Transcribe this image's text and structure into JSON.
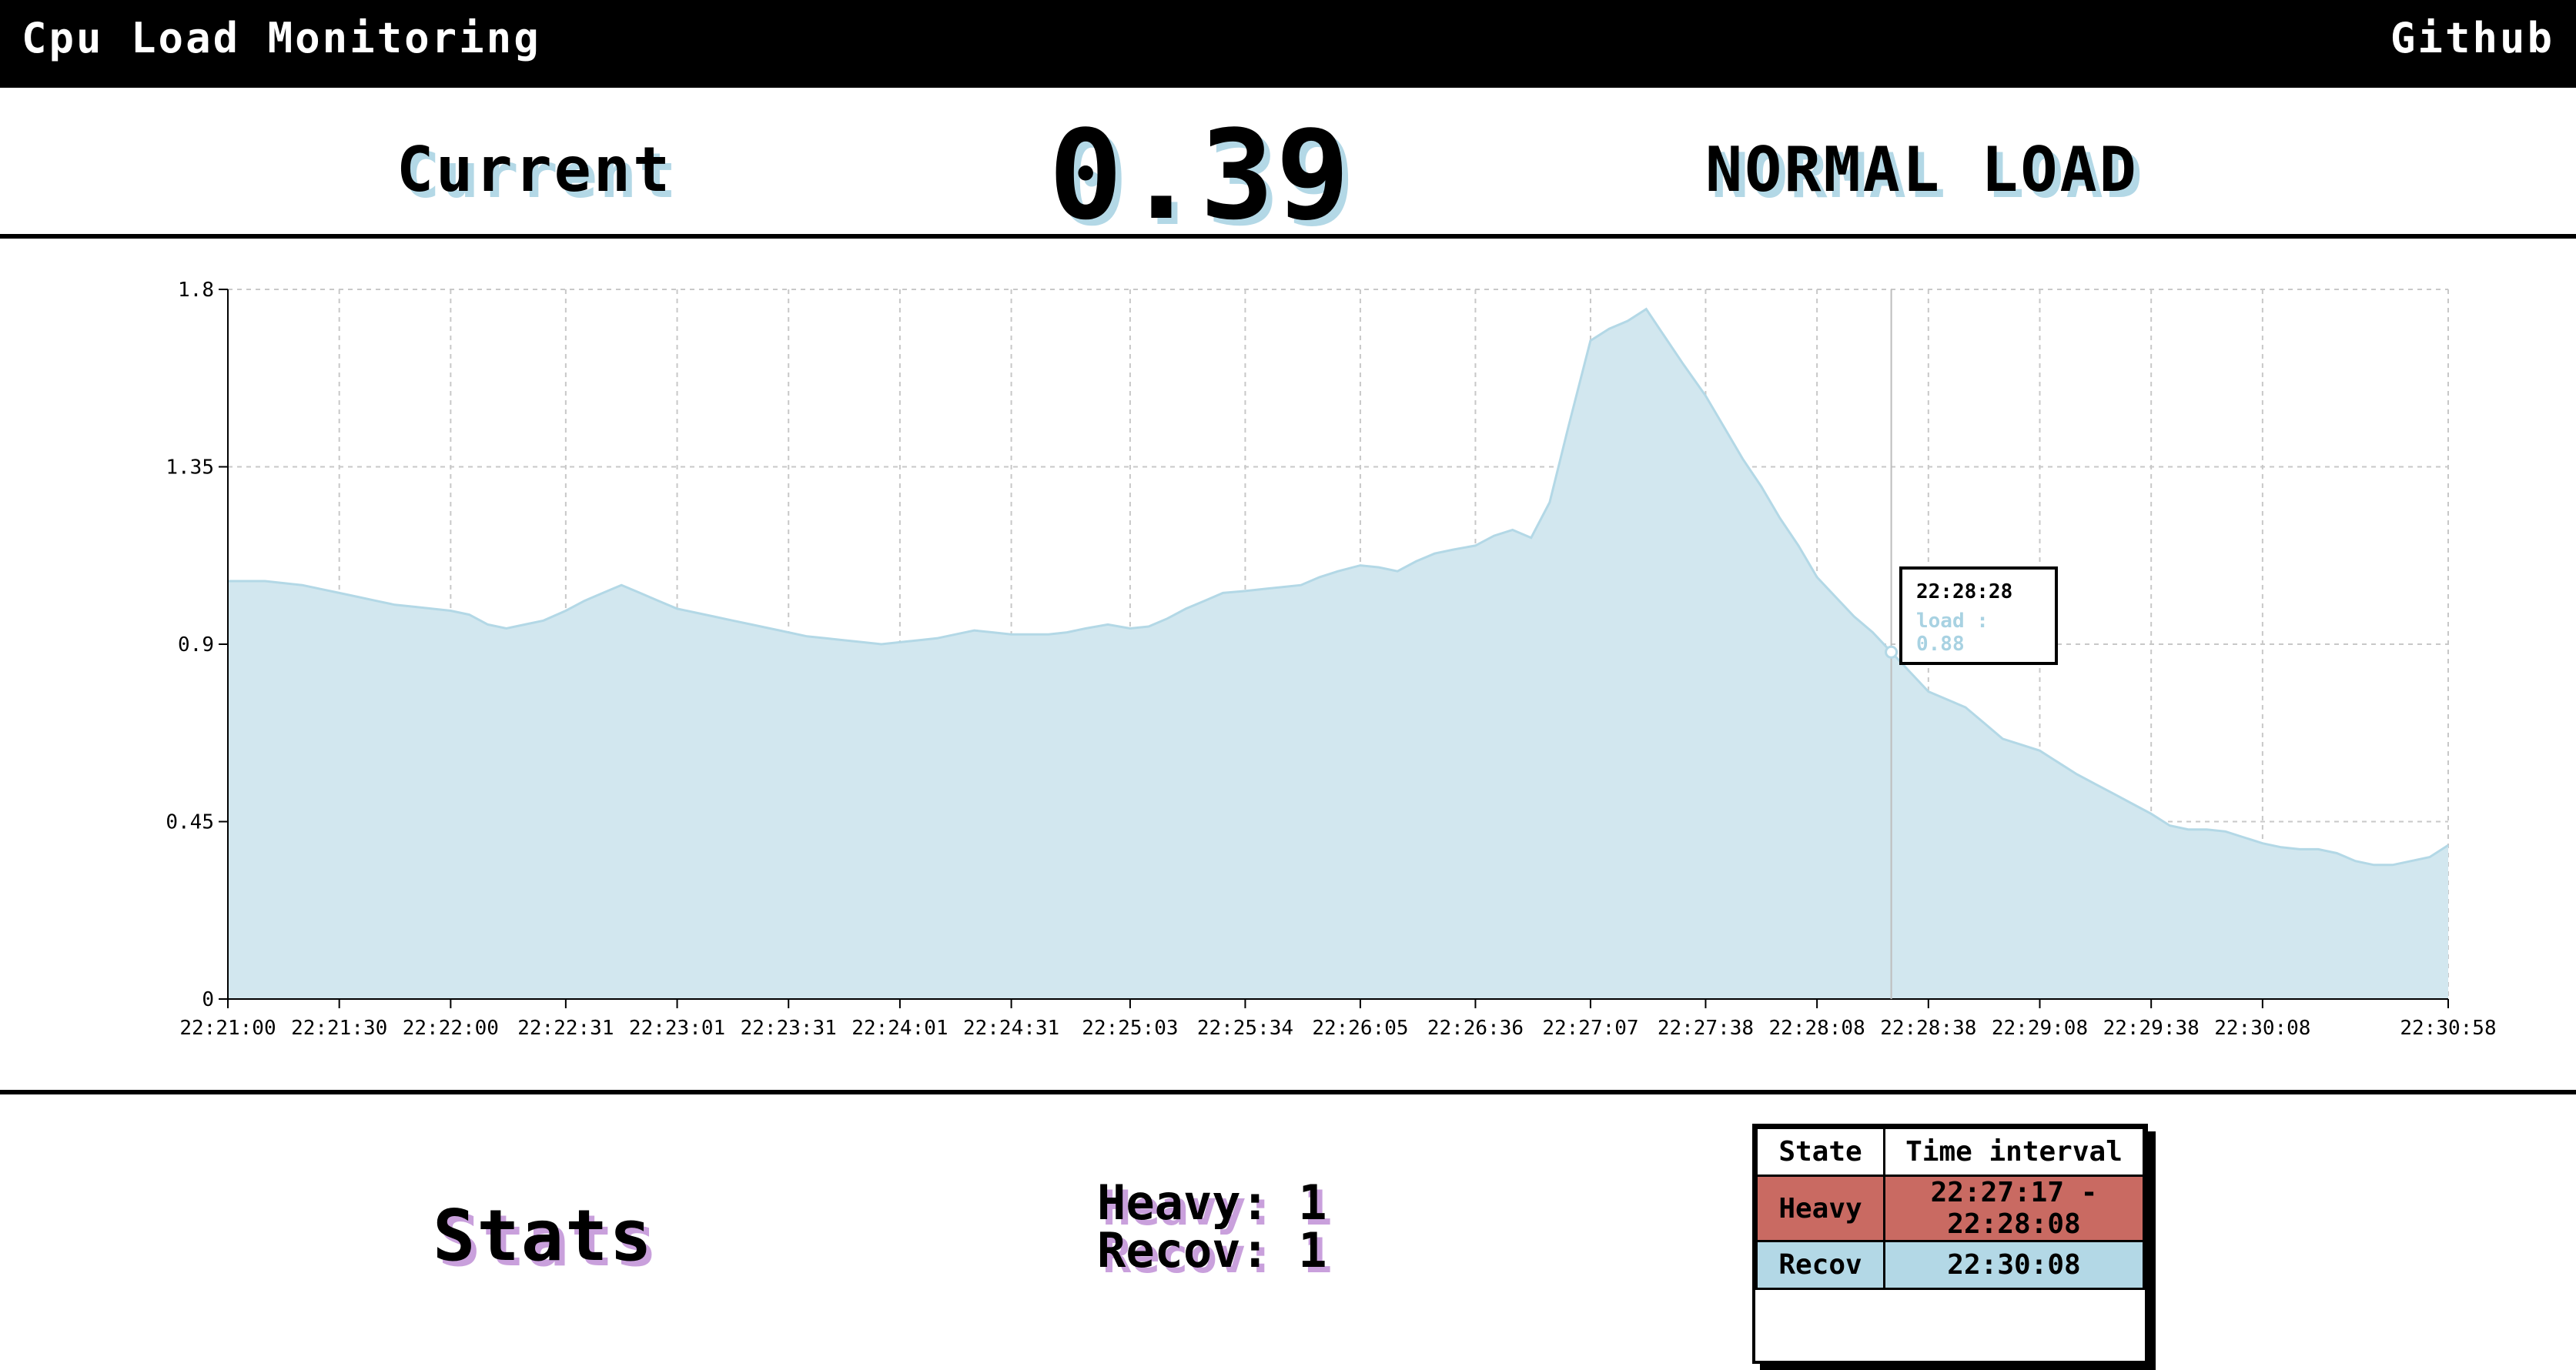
{
  "header": {
    "title": "Cpu Load Monitoring",
    "github_label": "Github"
  },
  "current": {
    "label": "Current",
    "value": "0.39",
    "status": "NORMAL LOAD"
  },
  "colors": {
    "area_fill": "#d2e7ef",
    "area_stroke": "#b3d8e6",
    "shadow_blue": "#b3d8e6",
    "shadow_purple": "#c9a0dc",
    "heavy": "#c96a62",
    "recov": "#b3d8e6"
  },
  "tooltip": {
    "time": "22:28:28",
    "load_text": "load : 0.88"
  },
  "chart_data": {
    "type": "area",
    "xlabel": "",
    "ylabel": "",
    "ylim": [
      0,
      1.8
    ],
    "grid": true,
    "y_ticks": [
      "0",
      "0.45",
      "0.9",
      "1.35",
      "1.8"
    ],
    "x_ticks": [
      "22:21:00",
      "22:21:30",
      "22:22:00",
      "22:22:31",
      "22:23:01",
      "22:23:31",
      "22:24:01",
      "22:24:31",
      "22:25:03",
      "22:25:34",
      "22:26:05",
      "22:26:36",
      "22:27:07",
      "22:27:38",
      "22:28:08",
      "22:28:38",
      "22:29:08",
      "22:29:38",
      "22:30:08",
      "22:30:58"
    ],
    "series": [
      {
        "name": "load",
        "x": [
          "22:21:00",
          "22:21:05",
          "22:21:10",
          "22:21:15",
          "22:21:20",
          "22:21:25",
          "22:21:30",
          "22:21:35",
          "22:21:40",
          "22:21:45",
          "22:21:50",
          "22:21:55",
          "22:22:00",
          "22:22:05",
          "22:22:10",
          "22:22:15",
          "22:22:20",
          "22:22:25",
          "22:22:31",
          "22:22:36",
          "22:22:41",
          "22:22:46",
          "22:22:51",
          "22:22:56",
          "22:23:01",
          "22:23:06",
          "22:23:11",
          "22:23:16",
          "22:23:21",
          "22:23:26",
          "22:23:31",
          "22:23:36",
          "22:23:41",
          "22:23:46",
          "22:23:51",
          "22:23:56",
          "22:24:01",
          "22:24:06",
          "22:24:11",
          "22:24:16",
          "22:24:21",
          "22:24:26",
          "22:24:31",
          "22:24:36",
          "22:24:41",
          "22:24:46",
          "22:24:51",
          "22:24:57",
          "22:25:03",
          "22:25:08",
          "22:25:13",
          "22:25:18",
          "22:25:23",
          "22:25:28",
          "22:25:34",
          "22:25:39",
          "22:25:44",
          "22:25:49",
          "22:25:54",
          "22:25:59",
          "22:26:05",
          "22:26:10",
          "22:26:15",
          "22:26:20",
          "22:26:25",
          "22:26:30",
          "22:26:36",
          "22:26:41",
          "22:26:46",
          "22:26:51",
          "22:26:56",
          "22:27:01",
          "22:27:07",
          "22:27:12",
          "22:27:17",
          "22:27:22",
          "22:27:27",
          "22:27:32",
          "22:27:38",
          "22:27:43",
          "22:27:48",
          "22:27:53",
          "22:27:58",
          "22:28:03",
          "22:28:08",
          "22:28:13",
          "22:28:18",
          "22:28:23",
          "22:28:28",
          "22:28:33",
          "22:28:38",
          "22:28:43",
          "22:28:48",
          "22:28:53",
          "22:28:58",
          "22:29:03",
          "22:29:08",
          "22:29:13",
          "22:29:18",
          "22:29:23",
          "22:29:28",
          "22:29:33",
          "22:29:38",
          "22:29:43",
          "22:29:48",
          "22:29:53",
          "22:29:58",
          "22:30:03",
          "22:30:08",
          "22:30:13",
          "22:30:18",
          "22:30:23",
          "22:30:28",
          "22:30:33",
          "22:30:38",
          "22:30:43",
          "22:30:48",
          "22:30:53",
          "22:30:58"
        ],
        "values": [
          1.06,
          1.06,
          1.06,
          1.055,
          1.05,
          1.04,
          1.03,
          1.02,
          1.01,
          1.0,
          0.995,
          0.99,
          0.985,
          0.975,
          0.95,
          0.94,
          0.95,
          0.96,
          0.985,
          1.01,
          1.03,
          1.05,
          1.03,
          1.01,
          0.99,
          0.98,
          0.97,
          0.96,
          0.95,
          0.94,
          0.93,
          0.92,
          0.915,
          0.91,
          0.905,
          0.9,
          0.905,
          0.91,
          0.915,
          0.925,
          0.935,
          0.93,
          0.925,
          0.925,
          0.925,
          0.93,
          0.94,
          0.95,
          0.94,
          0.945,
          0.965,
          0.99,
          1.01,
          1.03,
          1.035,
          1.04,
          1.045,
          1.05,
          1.07,
          1.085,
          1.1,
          1.095,
          1.085,
          1.11,
          1.13,
          1.14,
          1.15,
          1.175,
          1.19,
          1.17,
          1.26,
          1.45,
          1.67,
          1.7,
          1.72,
          1.75,
          1.68,
          1.61,
          1.53,
          1.45,
          1.37,
          1.3,
          1.22,
          1.15,
          1.07,
          1.02,
          0.97,
          0.93,
          0.88,
          0.83,
          0.78,
          0.76,
          0.74,
          0.7,
          0.66,
          0.645,
          0.63,
          0.6,
          0.57,
          0.545,
          0.52,
          0.495,
          0.47,
          0.44,
          0.43,
          0.43,
          0.425,
          0.41,
          0.395,
          0.385,
          0.38,
          0.38,
          0.37,
          0.35,
          0.34,
          0.34,
          0.35,
          0.36,
          0.39
        ]
      }
    ]
  },
  "stats": {
    "title": "Stats",
    "heavy_text": "Heavy: 1",
    "recov_text": "Recov: 1",
    "table": {
      "headers": [
        "State",
        "Time interval"
      ],
      "rows": [
        {
          "state": "Heavy",
          "interval": "22:27:17 - 22:28:08"
        },
        {
          "state": "Recov",
          "interval": "22:30:08"
        }
      ]
    }
  }
}
